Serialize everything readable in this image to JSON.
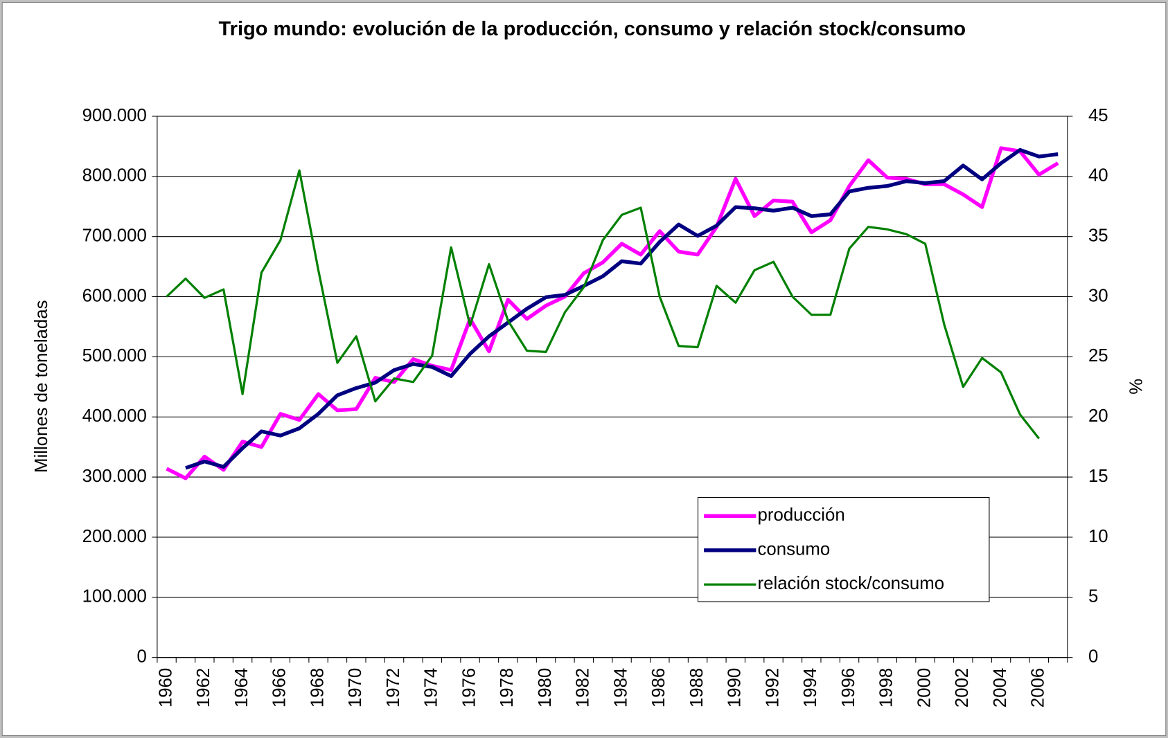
{
  "chart_data": {
    "type": "line",
    "title": "Trigo mundo: evolución de la producción, consumo y relación stock/consumo",
    "y_label": "Millones de toneladas",
    "y2_label": "%",
    "categories": [
      "1960",
      null,
      "1962",
      null,
      "1964",
      null,
      "1966",
      null,
      "1968",
      null,
      "1970",
      null,
      "1972",
      null,
      "1974",
      null,
      "1976",
      null,
      "1978",
      null,
      "1980",
      null,
      "1982",
      null,
      "1984",
      null,
      "1986",
      null,
      "1988",
      null,
      "1990",
      null,
      "1992",
      null,
      "1994",
      null,
      "1996",
      null,
      "1998",
      null,
      "2000",
      null,
      "2002",
      null,
      "2004",
      null,
      "2006",
      null
    ],
    "series": [
      {
        "name": "producción",
        "color": "#ff00ff",
        "values": [
          314000,
          298000,
          334000,
          312000,
          359000,
          350000,
          405000,
          395000,
          438000,
          411000,
          413000,
          465000,
          458000,
          496000,
          485000,
          478000,
          563000,
          509000,
          595000,
          563000,
          585000,
          600000,
          639000,
          657000,
          688000,
          670000,
          709000,
          675000,
          670000,
          716000,
          796000,
          734000,
          760000,
          758000,
          707000,
          727000,
          784000,
          827000,
          798000,
          796000,
          787000,
          787000,
          770000,
          749000,
          847000,
          842000,
          803000,
          822000
        ]
      },
      {
        "name": "consumo",
        "color": "#000080",
        "values": [
          null,
          315000,
          326000,
          317000,
          348000,
          376000,
          369000,
          381000,
          405000,
          436000,
          448000,
          457000,
          478000,
          488000,
          483000,
          468000,
          505000,
          534000,
          557000,
          580000,
          599000,
          603000,
          618000,
          634000,
          659000,
          655000,
          691000,
          720000,
          701000,
          718000,
          749000,
          747000,
          743000,
          748000,
          734000,
          737000,
          775000,
          781000,
          784000,
          792000,
          789000,
          792000,
          818000,
          795000,
          822000,
          844000,
          833000,
          837000
        ]
      },
      {
        "name": "relación stock/consumo",
        "color": "#008000",
        "axis": "y2",
        "values": [
          30.0,
          31.5,
          29.9,
          30.6,
          21.9,
          32.0,
          34.7,
          40.5,
          32.2,
          24.5,
          26.7,
          21.3,
          23.2,
          22.9,
          25.1,
          34.1,
          27.6,
          32.7,
          28.0,
          25.5,
          25.4,
          28.7,
          30.8,
          34.7,
          36.8,
          37.4,
          30.0,
          25.9,
          25.8,
          30.9,
          29.5,
          32.2,
          32.9,
          30.0,
          28.5,
          28.5,
          34.0,
          35.8,
          35.6,
          35.2,
          34.4,
          27.7,
          22.5,
          24.9,
          23.7,
          20.2,
          18.2,
          null
        ]
      }
    ],
    "ylim": [
      0,
      900000
    ],
    "yticks": [
      0,
      {
        "value": 100000,
        "label": "100.000"
      },
      {
        "value": 200000,
        "label": "200.000"
      },
      {
        "value": 300000,
        "label": "300.000"
      },
      {
        "value": 400000,
        "label": "400.000"
      },
      {
        "value": 500000,
        "label": "500.000"
      },
      {
        "value": 600000,
        "label": "600.000"
      },
      {
        "value": 700000,
        "label": "700.000"
      },
      {
        "value": 800000,
        "label": "800.000"
      },
      {
        "value": 900000,
        "label": "900.000"
      }
    ],
    "y2lim": [
      0,
      45
    ],
    "y2ticks": [
      0,
      5,
      10,
      15,
      20,
      25,
      30,
      35,
      40,
      45
    ],
    "grid": true,
    "legend": "lower right"
  }
}
